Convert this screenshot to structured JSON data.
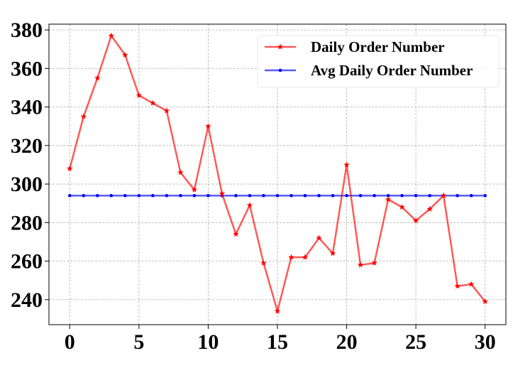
{
  "chart_data": {
    "type": "line",
    "title": "",
    "xlabel": "",
    "ylabel": "",
    "xlim": [
      -1.5,
      31.5
    ],
    "ylim": [
      227,
      383
    ],
    "xticks": [
      0,
      5,
      10,
      15,
      20,
      25,
      30
    ],
    "yticks": [
      240,
      260,
      280,
      300,
      320,
      340,
      360,
      380
    ],
    "grid": true,
    "legend_position": "upper right",
    "x": [
      0,
      1,
      2,
      3,
      4,
      5,
      6,
      7,
      8,
      9,
      10,
      11,
      12,
      13,
      14,
      15,
      16,
      17,
      18,
      19,
      20,
      21,
      22,
      23,
      24,
      25,
      26,
      27,
      28,
      29,
      30
    ],
    "series": [
      {
        "name": "Daily Order Number",
        "color": "#ff0000",
        "marker": "star",
        "values": [
          308,
          335,
          355,
          377,
          367,
          346,
          342,
          338,
          306,
          297,
          330,
          295,
          274,
          289,
          259,
          234,
          262,
          262,
          272,
          264,
          310,
          258,
          259,
          292,
          288,
          281,
          287,
          294,
          247,
          248,
          239
        ]
      },
      {
        "name": "Avg Daily Order Number",
        "color": "#0000ff",
        "marker": "dot",
        "values": [
          294,
          294,
          294,
          294,
          294,
          294,
          294,
          294,
          294,
          294,
          294,
          294,
          294,
          294,
          294,
          294,
          294,
          294,
          294,
          294,
          294,
          294,
          294,
          294,
          294,
          294,
          294,
          294,
          294,
          294,
          294
        ]
      }
    ]
  }
}
